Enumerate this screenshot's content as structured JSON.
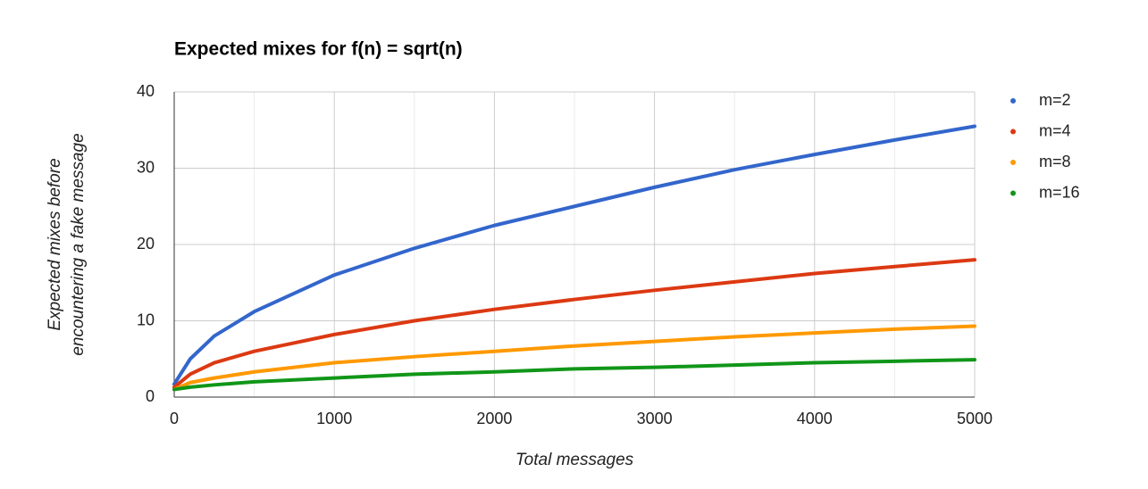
{
  "chart_data": {
    "type": "line",
    "title": "Expected mixes for f(n) = sqrt(n)",
    "x_label": "Total messages",
    "y_label": [
      "Expected mixes before",
      "encountering a fake message"
    ],
    "x": [
      0,
      100,
      250,
      500,
      1000,
      1500,
      2000,
      2500,
      3000,
      3500,
      4000,
      4500,
      5000
    ],
    "series": [
      {
        "name": "m=2",
        "color": "#3366cc",
        "values": [
          1.7,
          5,
          8,
          11.2,
          16,
          19.5,
          22.5,
          25,
          27.5,
          29.8,
          31.8,
          33.7,
          35.5
        ]
      },
      {
        "name": "m=4",
        "color": "#dc3912",
        "values": [
          1.3,
          3,
          4.5,
          6,
          8.2,
          10,
          11.5,
          12.8,
          14,
          15.1,
          16.2,
          17.1,
          18
        ]
      },
      {
        "name": "m=8",
        "color": "#ff9900",
        "values": [
          1,
          1.9,
          2.5,
          3.3,
          4.5,
          5.3,
          6,
          6.7,
          7.3,
          7.9,
          8.4,
          8.9,
          9.3
        ]
      },
      {
        "name": "m=16",
        "color": "#109618",
        "values": [
          1,
          1.3,
          1.6,
          2,
          2.5,
          3,
          3.3,
          3.7,
          3.9,
          4.2,
          4.5,
          4.7,
          4.9
        ]
      }
    ],
    "xlim": [
      0,
      5000
    ],
    "xticks": [
      0,
      1000,
      2000,
      3000,
      4000,
      5000
    ],
    "ylim": [
      0,
      40
    ],
    "yticks": [
      0,
      10,
      20,
      30,
      40
    ],
    "grid": true,
    "legend": "right"
  }
}
